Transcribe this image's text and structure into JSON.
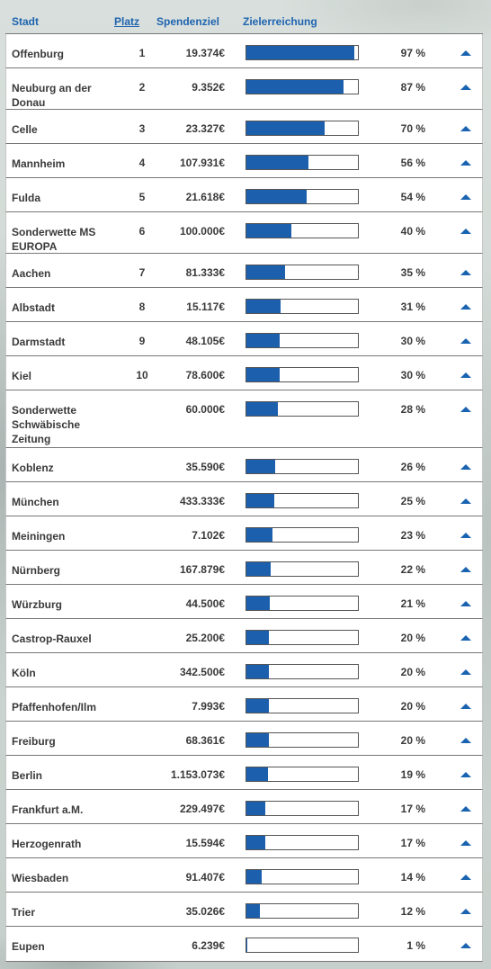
{
  "header": {
    "stadt": "Stadt",
    "platz": "Platz",
    "spendenziel": "Spendenziel",
    "zielerreichung": "Zielerreichung"
  },
  "colors": {
    "accent": "#1b5fad",
    "header_text": "#1e64b0"
  },
  "icons": {
    "row_action": "triangle-up-icon"
  },
  "rows": [
    {
      "city": "Offenburg",
      "rank": "1",
      "goal": "19.374€",
      "percent": "97 %",
      "progress": 97
    },
    {
      "city": "Neuburg an der Donau",
      "rank": "2",
      "goal": "9.352€",
      "percent": "87 %",
      "progress": 87
    },
    {
      "city": "Celle",
      "rank": "3",
      "goal": "23.327€",
      "percent": "70 %",
      "progress": 70
    },
    {
      "city": "Mannheim",
      "rank": "4",
      "goal": "107.931€",
      "percent": "56 %",
      "progress": 56
    },
    {
      "city": "Fulda",
      "rank": "5",
      "goal": "21.618€",
      "percent": "54 %",
      "progress": 54
    },
    {
      "city": "Sonderwette MS EUROPA",
      "rank": "6",
      "goal": "100.000€",
      "percent": "40 %",
      "progress": 40
    },
    {
      "city": "Aachen",
      "rank": "7",
      "goal": "81.333€",
      "percent": "35 %",
      "progress": 35
    },
    {
      "city": "Albstadt",
      "rank": "8",
      "goal": "15.117€",
      "percent": "31 %",
      "progress": 31
    },
    {
      "city": "Darmstadt",
      "rank": "9",
      "goal": "48.105€",
      "percent": "30 %",
      "progress": 30
    },
    {
      "city": "Kiel",
      "rank": "10",
      "goal": "78.600€",
      "percent": "30 %",
      "progress": 30
    },
    {
      "city": "Sonderwette Schwäbische Zeitung",
      "rank": "",
      "goal": "60.000€",
      "percent": "28 %",
      "progress": 28
    },
    {
      "city": "Koblenz",
      "rank": "",
      "goal": "35.590€",
      "percent": "26 %",
      "progress": 26
    },
    {
      "city": "München",
      "rank": "",
      "goal": "433.333€",
      "percent": "25 %",
      "progress": 25
    },
    {
      "city": "Meiningen",
      "rank": "",
      "goal": "7.102€",
      "percent": "23 %",
      "progress": 23
    },
    {
      "city": "Nürnberg",
      "rank": "",
      "goal": "167.879€",
      "percent": "22 %",
      "progress": 22
    },
    {
      "city": "Würzburg",
      "rank": "",
      "goal": "44.500€",
      "percent": "21 %",
      "progress": 21
    },
    {
      "city": "Castrop-Rauxel",
      "rank": "",
      "goal": "25.200€",
      "percent": "20 %",
      "progress": 20
    },
    {
      "city": "Köln",
      "rank": "",
      "goal": "342.500€",
      "percent": "20 %",
      "progress": 20
    },
    {
      "city": "Pfaffenhofen/Ilm",
      "rank": "",
      "goal": "7.993€",
      "percent": "20 %",
      "progress": 20
    },
    {
      "city": "Freiburg",
      "rank": "",
      "goal": "68.361€",
      "percent": "20 %",
      "progress": 20
    },
    {
      "city": "Berlin",
      "rank": "",
      "goal": "1.153.073€",
      "percent": "19 %",
      "progress": 19
    },
    {
      "city": "Frankfurt a.M.",
      "rank": "",
      "goal": "229.497€",
      "percent": "17 %",
      "progress": 17
    },
    {
      "city": "Herzogenrath",
      "rank": "",
      "goal": "15.594€",
      "percent": "17 %",
      "progress": 17
    },
    {
      "city": "Wiesbaden",
      "rank": "",
      "goal": "91.407€",
      "percent": "14 %",
      "progress": 14
    },
    {
      "city": "Trier",
      "rank": "",
      "goal": "35.026€",
      "percent": "12 %",
      "progress": 12
    },
    {
      "city": "Eupen",
      "rank": "",
      "goal": "6.239€",
      "percent": "1 %",
      "progress": 1
    }
  ]
}
